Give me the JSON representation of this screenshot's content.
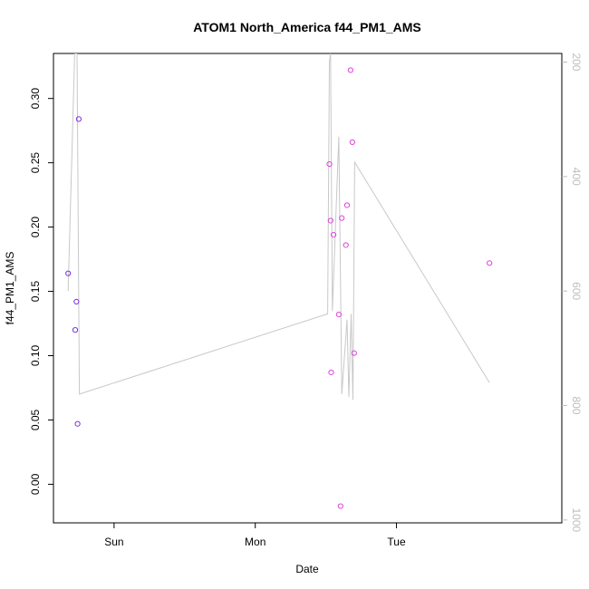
{
  "colors": {
    "point_stroke_early": "#7b2fe0",
    "point_stroke": "#e040e0",
    "line": "#c8c8c8",
    "axis": "#000000",
    "right_axis": "#bdbdbd"
  },
  "chart_data": {
    "type": "scatter",
    "title": "ATOM1 North_America f44_PM1_AMS",
    "xlabel": "Date",
    "ylabel": "f44_PM1_AMS",
    "x_unit": "hours since start of Sun",
    "xlim": [
      -10.3,
      76.1
    ],
    "x_ticks": [
      {
        "label": "Sun",
        "value": 0
      },
      {
        "label": "Mon",
        "value": 24
      },
      {
        "label": "Tue",
        "value": 48
      }
    ],
    "ylim": [
      -0.03,
      0.335
    ],
    "y_ticks": [
      {
        "label": "0.00",
        "value": 0.0
      },
      {
        "label": "0.05",
        "value": 0.05
      },
      {
        "label": "0.10",
        "value": 0.1
      },
      {
        "label": "0.15",
        "value": 0.15
      },
      {
        "label": "0.20",
        "value": 0.2
      },
      {
        "label": "0.25",
        "value": 0.25
      },
      {
        "label": "0.30",
        "value": 0.3
      }
    ],
    "right_axis": {
      "lim": [
        1005,
        185
      ],
      "ticks": [
        {
          "label": "200",
          "value": 200
        },
        {
          "label": "400",
          "value": 400
        },
        {
          "label": "600",
          "value": 600
        },
        {
          "label": "800",
          "value": 800
        },
        {
          "label": "1000",
          "value": 1000
        }
      ]
    },
    "points": [
      {
        "x": -7.8,
        "y": 0.164,
        "group": "early"
      },
      {
        "x": -6.6,
        "y": 0.12,
        "group": "early"
      },
      {
        "x": -6.4,
        "y": 0.142,
        "group": "early"
      },
      {
        "x": -6.2,
        "y": 0.047,
        "group": "early"
      },
      {
        "x": -6.0,
        "y": 0.284,
        "group": "early"
      },
      {
        "x": 36.6,
        "y": 0.249,
        "group": "late"
      },
      {
        "x": 36.8,
        "y": 0.205,
        "group": "late"
      },
      {
        "x": 36.9,
        "y": 0.087,
        "group": "late"
      },
      {
        "x": 37.3,
        "y": 0.194,
        "group": "late"
      },
      {
        "x": 38.2,
        "y": 0.132,
        "group": "late"
      },
      {
        "x": 38.5,
        "y": -0.017,
        "group": "late"
      },
      {
        "x": 38.7,
        "y": 0.207,
        "group": "late"
      },
      {
        "x": 39.4,
        "y": 0.186,
        "group": "late"
      },
      {
        "x": 39.6,
        "y": 0.217,
        "group": "late"
      },
      {
        "x": 40.2,
        "y": 0.322,
        "group": "late"
      },
      {
        "x": 40.5,
        "y": 0.266,
        "group": "late"
      },
      {
        "x": 40.8,
        "y": 0.102,
        "group": "late"
      },
      {
        "x": 63.8,
        "y": 0.172,
        "group": "late"
      }
    ],
    "line_series": {
      "axis": "right",
      "points": [
        [
          -7.8,
          600
        ],
        [
          -6.7,
          185
        ],
        [
          -6.3,
          185
        ],
        [
          -5.9,
          780
        ],
        [
          36.3,
          640
        ],
        [
          36.6,
          200
        ],
        [
          36.8,
          185
        ],
        [
          37.1,
          635
        ],
        [
          38.2,
          330
        ],
        [
          38.7,
          780
        ],
        [
          39.6,
          650
        ],
        [
          39.9,
          785
        ],
        [
          40.3,
          640
        ],
        [
          40.6,
          790
        ],
        [
          40.9,
          375
        ],
        [
          63.8,
          760
        ]
      ]
    }
  }
}
